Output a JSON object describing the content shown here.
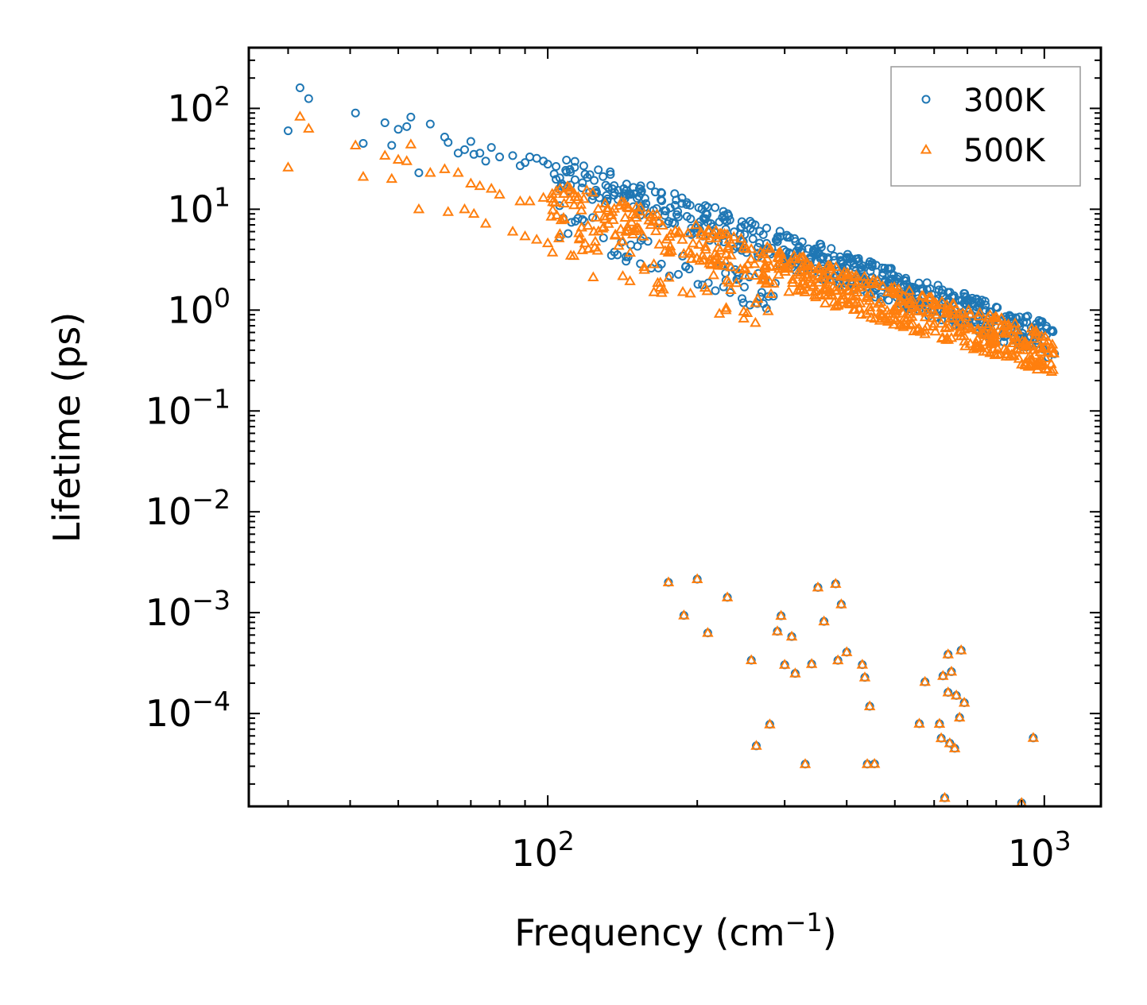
{
  "chart_data": {
    "type": "scatter",
    "xscale": "log",
    "yscale": "log",
    "xlabel": "Frequency (cm",
    "xlabel_sup": "−1",
    "xlabel_end": ")",
    "ylabel": "Lifetime (ps)",
    "xlim": [
      25,
      1300
    ],
    "ylim": [
      1.2e-05,
      400
    ],
    "x_tick_labels": [
      {
        "value": 100,
        "base": "10",
        "exp": "2"
      },
      {
        "value": 1000,
        "base": "10",
        "exp": "3"
      }
    ],
    "y_tick_labels": [
      {
        "value": 100,
        "base": "10",
        "exp": "2"
      },
      {
        "value": 10,
        "base": "10",
        "exp": "1"
      },
      {
        "value": 1,
        "base": "10",
        "exp": "0"
      },
      {
        "value": 0.1,
        "base": "10",
        "exp": "−1"
      },
      {
        "value": 0.01,
        "base": "10",
        "exp": "−2"
      },
      {
        "value": 0.001,
        "base": "10",
        "exp": "−3"
      },
      {
        "value": 0.0001,
        "base": "10",
        "exp": "−4"
      }
    ],
    "legend": {
      "placement": "top-right",
      "entries": [
        "300K",
        "500K"
      ]
    },
    "series": [
      {
        "name": "300K",
        "marker": "circle-open",
        "color": "#1f77b4",
        "x": [
          30,
          31.7,
          33,
          41,
          42.5,
          47,
          48.5,
          50,
          52,
          53,
          55,
          58,
          62,
          63,
          66,
          68,
          70,
          71,
          73,
          75,
          77,
          80,
          85,
          88,
          90,
          92,
          95,
          98,
          100
        ],
        "y": [
          60,
          160,
          125,
          90,
          45,
          72,
          43,
          62,
          66,
          82,
          23,
          70,
          52,
          46,
          36,
          39,
          47,
          35,
          36,
          30,
          41,
          33,
          34,
          27,
          29,
          33,
          32,
          30,
          28
        ],
        "cluster": {
          "x_range": [
            100,
            1050
          ],
          "y_start": 26,
          "y_end": 0.48,
          "secondary_offset": 0.5,
          "spread": 0.35,
          "count": 650
        },
        "low_points": {
          "x": [
            175,
            188,
            200,
            210,
            230,
            257,
            263,
            280,
            290,
            295,
            300,
            310,
            315,
            330,
            340,
            350,
            360,
            380,
            384,
            390,
            400,
            430,
            435,
            440,
            445,
            455,
            560,
            575,
            615,
            620,
            625,
            630,
            640,
            640,
            645,
            650,
            660,
            665,
            675,
            680,
            690,
            900,
            950
          ],
          "y": [
            0.002,
            0.00094,
            0.00215,
            0.00063,
            0.00142,
            0.000338,
            4.78e-05,
            7.81e-05,
            0.000653,
            0.00093,
            0.000304,
            0.00058,
            0.00025,
            3.15e-05,
            0.00031,
            0.00178,
            0.00082,
            0.00193,
            0.000337,
            0.00121,
            0.000406,
            0.000305,
            0.000228,
            3.15e-05,
            0.000118,
            3.17e-05,
            7.93e-05,
            0.000206,
            7.91e-05,
            5.7e-05,
            0.000236,
            1.46e-05,
            0.000386,
            0.000162,
            5.08e-05,
            0.00026,
            4.52e-05,
            0.000151,
            9.13e-05,
            0.000424,
            0.000128,
            1.3e-05,
            5.73e-05
          ]
        }
      },
      {
        "name": "500K",
        "marker": "triangle-open",
        "color": "#ff7f0e",
        "x": [
          30,
          31.7,
          33,
          41,
          42.5,
          47,
          48.5,
          50,
          52,
          53,
          55,
          58,
          62,
          63,
          66,
          68,
          70,
          71,
          73,
          75,
          77,
          80,
          85,
          88,
          90,
          92,
          95,
          98,
          100
        ],
        "y": [
          26,
          83,
          63,
          43,
          21,
          34,
          20,
          31,
          30,
          44,
          10,
          23,
          25,
          9.4,
          23,
          10,
          18,
          9.0,
          17,
          7.2,
          16,
          14,
          6.0,
          12,
          5.4,
          12,
          5.0,
          13,
          4.6
        ],
        "cluster": {
          "x_range": [
            100,
            1050
          ],
          "y_start": 13,
          "y_end": 0.36,
          "secondary_offset": 0.45,
          "spread": 0.4,
          "count": 650
        },
        "low_points": {
          "x": [
            175,
            188,
            200,
            210,
            230,
            257,
            263,
            280,
            290,
            295,
            300,
            310,
            315,
            330,
            340,
            350,
            360,
            380,
            384,
            390,
            400,
            430,
            435,
            440,
            445,
            455,
            560,
            575,
            615,
            620,
            625,
            630,
            640,
            640,
            645,
            650,
            660,
            665,
            675,
            680,
            690,
            900,
            950
          ],
          "y": [
            0.002,
            0.00094,
            0.00215,
            0.00063,
            0.00142,
            0.000338,
            4.78e-05,
            7.81e-05,
            0.000653,
            0.00093,
            0.000304,
            0.00058,
            0.00025,
            3.15e-05,
            0.00031,
            0.00178,
            0.00082,
            0.00193,
            0.000337,
            0.00121,
            0.000406,
            0.000305,
            0.000228,
            3.15e-05,
            0.000118,
            3.17e-05,
            7.93e-05,
            0.000206,
            7.91e-05,
            5.7e-05,
            0.000236,
            1.46e-05,
            0.000386,
            0.000162,
            5.08e-05,
            0.00026,
            4.52e-05,
            0.000151,
            9.13e-05,
            0.000424,
            0.000128,
            1.3e-05,
            5.73e-05
          ]
        }
      }
    ]
  }
}
